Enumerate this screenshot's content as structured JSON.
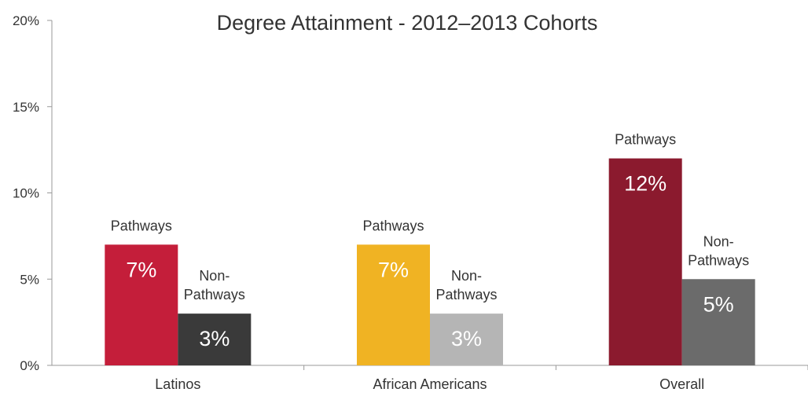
{
  "chart_data": {
    "type": "bar",
    "title": "Degree Attainment - 2012–2013 Cohorts",
    "xlabel": "",
    "ylabel": "",
    "ylim": [
      0,
      20
    ],
    "yticks": [
      0,
      5,
      10,
      15,
      20
    ],
    "ytick_labels": [
      "0%",
      "5%",
      "10%",
      "15%",
      "20%"
    ],
    "categories": [
      "Latinos",
      "African Americans",
      "Overall"
    ],
    "series": [
      {
        "name": "Pathways",
        "values": [
          7,
          7,
          12
        ],
        "value_labels": [
          "7%",
          "7%",
          "12%"
        ],
        "bar_labels": [
          [
            "Pathways"
          ],
          [
            "Pathways"
          ],
          [
            "Pathways"
          ]
        ],
        "colors": [
          "#c41e3a",
          "#f0b323",
          "#8b1a2e"
        ]
      },
      {
        "name": "Non-Pathways",
        "values": [
          3,
          3,
          5
        ],
        "value_labels": [
          "3%",
          "3%",
          "5%"
        ],
        "bar_labels": [
          [
            "Non-",
            "Pathways"
          ],
          [
            "Non-",
            "Pathways"
          ],
          [
            "Non-",
            "Pathways"
          ]
        ],
        "colors": [
          "#3a3a3a",
          "#b5b5b5",
          "#6b6b6b"
        ]
      }
    ],
    "grid": false,
    "legend": "none"
  }
}
